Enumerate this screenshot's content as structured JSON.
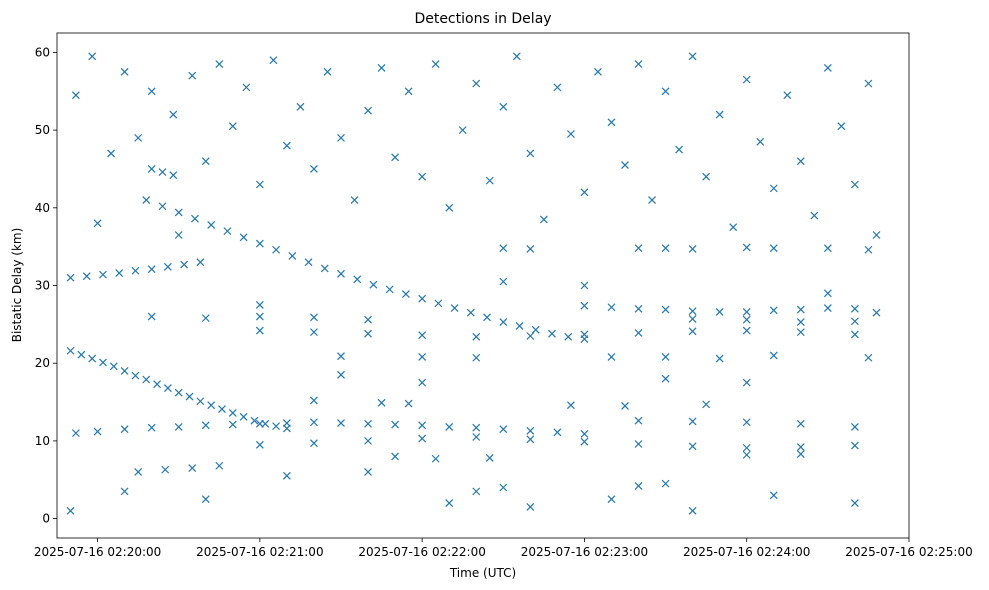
{
  "chart_data": {
    "type": "scatter",
    "title": "Detections in Delay",
    "xlabel": "Time (UTC)",
    "ylabel": "Bistatic Delay (km)",
    "x_unit": "time-of-day",
    "xlim": [
      "02:19:45",
      "02:25:00"
    ],
    "ylim": [
      -2.5,
      62.5
    ],
    "x_ticks": [
      {
        "t": "02:20:00",
        "label": "2025-07-16 02:20:00"
      },
      {
        "t": "02:21:00",
        "label": "2025-07-16 02:21:00"
      },
      {
        "t": "02:22:00",
        "label": "2025-07-16 02:22:00"
      },
      {
        "t": "02:23:00",
        "label": "2025-07-16 02:23:00"
      },
      {
        "t": "02:24:00",
        "label": "2025-07-16 02:24:00"
      },
      {
        "t": "02:25:00",
        "label": "2025-07-16 02:25:00"
      }
    ],
    "y_ticks": [
      0,
      10,
      20,
      30,
      40,
      50,
      60
    ],
    "grid": false,
    "legend": "none",
    "marker": "x",
    "color": "#1f77b4",
    "series": [
      {
        "values": [
          [
            "02:19:50",
            21.6
          ],
          [
            "02:19:54",
            21.1
          ],
          [
            "02:19:58",
            20.6
          ],
          [
            "02:20:02",
            20.1
          ],
          [
            "02:20:06",
            19.6
          ],
          [
            "02:20:10",
            19.0
          ],
          [
            "02:20:14",
            18.4
          ],
          [
            "02:20:18",
            17.9
          ],
          [
            "02:20:22",
            17.3
          ],
          [
            "02:20:26",
            16.8
          ],
          [
            "02:20:30",
            16.2
          ],
          [
            "02:20:34",
            15.7
          ],
          [
            "02:20:38",
            15.1
          ],
          [
            "02:20:42",
            14.6
          ],
          [
            "02:20:46",
            14.1
          ],
          [
            "02:20:50",
            13.6
          ],
          [
            "02:20:54",
            13.1
          ],
          [
            "02:20:58",
            12.6
          ],
          [
            "02:21:02",
            12.2
          ],
          [
            "02:21:06",
            11.9
          ],
          [
            "02:21:10",
            11.6
          ],
          [
            "02:20:18",
            41.0
          ],
          [
            "02:20:24",
            40.2
          ],
          [
            "02:20:30",
            39.4
          ],
          [
            "02:20:36",
            38.6
          ],
          [
            "02:20:42",
            37.8
          ],
          [
            "02:20:48",
            37.0
          ],
          [
            "02:20:54",
            36.2
          ],
          [
            "02:21:00",
            35.4
          ],
          [
            "02:21:06",
            34.6
          ],
          [
            "02:21:12",
            33.8
          ],
          [
            "02:21:18",
            33.0
          ],
          [
            "02:21:24",
            32.2
          ],
          [
            "02:21:30",
            31.5
          ],
          [
            "02:21:36",
            30.8
          ],
          [
            "02:21:42",
            30.1
          ],
          [
            "02:21:48",
            29.5
          ],
          [
            "02:21:54",
            28.9
          ],
          [
            "02:22:00",
            28.3
          ],
          [
            "02:22:06",
            27.7
          ],
          [
            "02:22:12",
            27.1
          ],
          [
            "02:22:18",
            26.5
          ],
          [
            "02:22:24",
            25.9
          ],
          [
            "02:22:30",
            25.3
          ],
          [
            "02:22:36",
            24.8
          ],
          [
            "02:22:42",
            24.3
          ],
          [
            "02:22:48",
            23.8
          ],
          [
            "02:22:54",
            23.4
          ],
          [
            "02:23:00",
            23.1
          ],
          [
            "02:19:50",
            31.0
          ],
          [
            "02:19:56",
            31.2
          ],
          [
            "02:20:02",
            31.4
          ],
          [
            "02:20:08",
            31.6
          ],
          [
            "02:20:14",
            31.9
          ],
          [
            "02:20:20",
            32.1
          ],
          [
            "02:20:26",
            32.4
          ],
          [
            "02:20:32",
            32.7
          ],
          [
            "02:20:38",
            33.0
          ],
          [
            "02:20:20",
            45.0
          ],
          [
            "02:20:24",
            44.6
          ],
          [
            "02:20:28",
            44.2
          ],
          [
            "02:23:00",
            27.4
          ],
          [
            "02:23:10",
            27.2
          ],
          [
            "02:23:20",
            27.0
          ],
          [
            "02:23:30",
            26.9
          ],
          [
            "02:23:40",
            26.7
          ],
          [
            "02:23:50",
            26.6
          ],
          [
            "02:24:00",
            26.6
          ],
          [
            "02:24:10",
            26.8
          ],
          [
            "02:24:20",
            26.9
          ],
          [
            "02:24:30",
            27.1
          ],
          [
            "02:24:40",
            27.0
          ],
          [
            "02:24:48",
            26.5
          ],
          [
            "02:21:00",
            24.2
          ],
          [
            "02:21:20",
            24.0
          ],
          [
            "02:21:40",
            23.8
          ],
          [
            "02:22:00",
            23.6
          ],
          [
            "02:22:20",
            23.4
          ],
          [
            "02:22:40",
            23.5
          ],
          [
            "02:23:00",
            23.7
          ],
          [
            "02:23:20",
            23.9
          ],
          [
            "02:23:40",
            24.1
          ],
          [
            "02:24:00",
            24.2
          ],
          [
            "02:24:20",
            24.0
          ],
          [
            "02:24:40",
            23.7
          ],
          [
            "02:19:52",
            11.0
          ],
          [
            "02:20:00",
            11.2
          ],
          [
            "02:20:10",
            11.5
          ],
          [
            "02:20:20",
            11.7
          ],
          [
            "02:20:30",
            11.8
          ],
          [
            "02:20:40",
            12.0
          ],
          [
            "02:20:50",
            12.1
          ],
          [
            "02:21:00",
            12.2
          ],
          [
            "02:21:10",
            12.3
          ],
          [
            "02:21:20",
            12.4
          ],
          [
            "02:21:30",
            12.3
          ],
          [
            "02:21:40",
            12.2
          ],
          [
            "02:21:50",
            12.1
          ],
          [
            "02:22:00",
            12.0
          ],
          [
            "02:22:10",
            11.8
          ],
          [
            "02:22:20",
            11.7
          ],
          [
            "02:22:30",
            11.5
          ],
          [
            "02:22:40",
            11.3
          ],
          [
            "02:22:50",
            11.1
          ],
          [
            "02:23:00",
            10.9
          ],
          [
            "02:21:00",
            9.5
          ],
          [
            "02:21:20",
            9.7
          ],
          [
            "02:21:40",
            10.0
          ],
          [
            "02:22:00",
            10.3
          ],
          [
            "02:22:20",
            10.5
          ],
          [
            "02:22:40",
            10.2
          ],
          [
            "02:23:00",
            9.9
          ],
          [
            "02:23:20",
            9.6
          ],
          [
            "02:23:40",
            9.3
          ],
          [
            "02:24:00",
            9.1
          ],
          [
            "02:24:20",
            9.2
          ],
          [
            "02:24:40",
            9.4
          ],
          [
            "02:23:20",
            12.6
          ],
          [
            "02:23:40",
            12.5
          ],
          [
            "02:24:00",
            12.4
          ],
          [
            "02:24:20",
            12.2
          ],
          [
            "02:24:40",
            11.8
          ],
          [
            "02:23:20",
            34.8
          ],
          [
            "02:23:30",
            34.8
          ],
          [
            "02:23:40",
            34.7
          ],
          [
            "02:24:00",
            34.9
          ],
          [
            "02:24:10",
            34.8
          ],
          [
            "02:24:30",
            34.8
          ],
          [
            "02:24:45",
            34.6
          ],
          [
            "02:22:30",
            34.8
          ],
          [
            "02:22:40",
            34.7
          ],
          [
            "02:20:20",
            26.0
          ],
          [
            "02:20:40",
            25.8
          ],
          [
            "02:21:00",
            26.0
          ],
          [
            "02:21:20",
            25.9
          ],
          [
            "02:21:40",
            25.6
          ],
          [
            "02:23:40",
            25.7
          ],
          [
            "02:24:00",
            25.6
          ],
          [
            "02:24:20",
            25.3
          ],
          [
            "02:24:40",
            25.4
          ],
          [
            "02:21:30",
            20.9
          ],
          [
            "02:22:00",
            20.8
          ],
          [
            "02:22:20",
            20.7
          ],
          [
            "02:23:10",
            20.8
          ],
          [
            "02:23:30",
            20.8
          ],
          [
            "02:23:50",
            20.6
          ],
          [
            "02:24:10",
            21.0
          ],
          [
            "02:24:45",
            20.7
          ],
          [
            "02:21:20",
            15.2
          ],
          [
            "02:21:45",
            14.9
          ],
          [
            "02:21:55",
            14.8
          ],
          [
            "02:22:55",
            14.6
          ],
          [
            "02:23:15",
            14.5
          ],
          [
            "02:23:45",
            14.7
          ],
          [
            "02:20:15",
            6.0
          ],
          [
            "02:20:25",
            6.3
          ],
          [
            "02:20:35",
            6.5
          ],
          [
            "02:20:45",
            6.8
          ],
          [
            "02:22:20",
            3.5
          ],
          [
            "02:22:30",
            4.0
          ],
          [
            "02:23:20",
            4.2
          ],
          [
            "02:23:30",
            4.5
          ],
          [
            "02:21:50",
            8.0
          ],
          [
            "02:22:05",
            7.7
          ],
          [
            "02:22:25",
            7.8
          ],
          [
            "02:24:00",
            8.2
          ],
          [
            "02:24:20",
            8.3
          ],
          [
            "02:19:50",
            1.0
          ],
          [
            "02:19:52",
            54.5
          ],
          [
            "02:19:58",
            59.5
          ],
          [
            "02:20:05",
            47.0
          ],
          [
            "02:20:10",
            57.5
          ],
          [
            "02:20:15",
            49.0
          ],
          [
            "02:20:20",
            55.0
          ],
          [
            "02:20:28",
            52.0
          ],
          [
            "02:20:35",
            57.0
          ],
          [
            "02:20:40",
            46.0
          ],
          [
            "02:20:45",
            58.5
          ],
          [
            "02:20:50",
            50.5
          ],
          [
            "02:20:55",
            55.5
          ],
          [
            "02:21:00",
            43.0
          ],
          [
            "02:21:05",
            59.0
          ],
          [
            "02:21:10",
            48.0
          ],
          [
            "02:21:15",
            53.0
          ],
          [
            "02:21:20",
            45.0
          ],
          [
            "02:21:25",
            57.5
          ],
          [
            "02:21:30",
            49.0
          ],
          [
            "02:21:35",
            41.0
          ],
          [
            "02:21:40",
            52.5
          ],
          [
            "02:21:45",
            58.0
          ],
          [
            "02:21:50",
            46.5
          ],
          [
            "02:21:55",
            55.0
          ],
          [
            "02:22:00",
            44.0
          ],
          [
            "02:22:05",
            58.5
          ],
          [
            "02:22:10",
            40.0
          ],
          [
            "02:22:15",
            50.0
          ],
          [
            "02:22:20",
            56.0
          ],
          [
            "02:22:25",
            43.5
          ],
          [
            "02:22:30",
            53.0
          ],
          [
            "02:22:35",
            59.5
          ],
          [
            "02:22:40",
            47.0
          ],
          [
            "02:22:45",
            38.5
          ],
          [
            "02:22:50",
            55.5
          ],
          [
            "02:22:55",
            49.5
          ],
          [
            "02:23:00",
            42.0
          ],
          [
            "02:23:05",
            57.5
          ],
          [
            "02:23:10",
            51.0
          ],
          [
            "02:23:15",
            45.5
          ],
          [
            "02:23:20",
            58.5
          ],
          [
            "02:23:25",
            41.0
          ],
          [
            "02:23:30",
            55.0
          ],
          [
            "02:23:35",
            47.5
          ],
          [
            "02:23:40",
            59.5
          ],
          [
            "02:23:45",
            44.0
          ],
          [
            "02:23:50",
            52.0
          ],
          [
            "02:23:55",
            37.5
          ],
          [
            "02:24:00",
            56.5
          ],
          [
            "02:24:05",
            48.5
          ],
          [
            "02:24:10",
            42.5
          ],
          [
            "02:24:15",
            54.5
          ],
          [
            "02:24:20",
            46.0
          ],
          [
            "02:24:25",
            39.0
          ],
          [
            "02:24:30",
            58.0
          ],
          [
            "02:24:35",
            50.5
          ],
          [
            "02:24:40",
            43.0
          ],
          [
            "02:24:45",
            56.0
          ],
          [
            "02:24:48",
            36.5
          ],
          [
            "02:20:00",
            38.0
          ],
          [
            "02:20:30",
            36.5
          ],
          [
            "02:21:00",
            27.5
          ],
          [
            "02:21:30",
            18.5
          ],
          [
            "02:22:00",
            17.5
          ],
          [
            "02:22:30",
            30.5
          ],
          [
            "02:23:00",
            30.0
          ],
          [
            "02:23:30",
            18.0
          ],
          [
            "02:24:00",
            17.5
          ],
          [
            "02:24:30",
            29.0
          ],
          [
            "02:20:10",
            3.5
          ],
          [
            "02:20:40",
            2.5
          ],
          [
            "02:21:10",
            5.5
          ],
          [
            "02:21:40",
            6.0
          ],
          [
            "02:22:10",
            2.0
          ],
          [
            "02:22:40",
            1.5
          ],
          [
            "02:23:10",
            2.5
          ],
          [
            "02:23:40",
            1.0
          ],
          [
            "02:24:10",
            3.0
          ],
          [
            "02:24:40",
            2.0
          ]
        ]
      }
    ]
  }
}
